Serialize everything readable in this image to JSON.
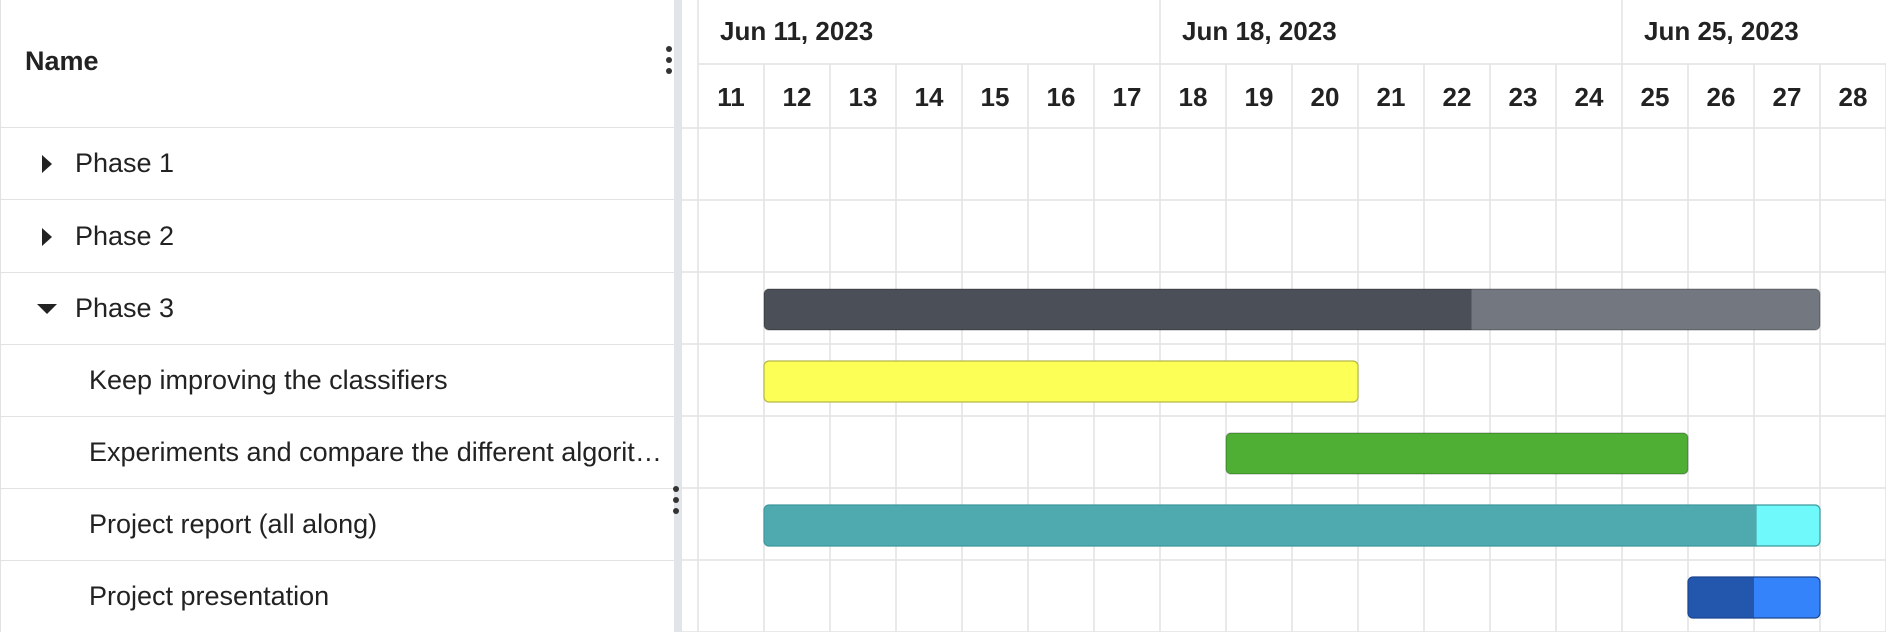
{
  "grid": {
    "header": {
      "name_label": "Name"
    },
    "rows": [
      {
        "label": "Phase 1",
        "type": "phase",
        "expanded": false
      },
      {
        "label": "Phase 2",
        "type": "phase",
        "expanded": false
      },
      {
        "label": "Phase 3",
        "type": "phase",
        "expanded": true
      },
      {
        "label": "Keep improving the classifiers",
        "type": "task"
      },
      {
        "label": "Experiments and compare the different algorithms",
        "type": "task"
      },
      {
        "label": "Project report (all along)",
        "type": "task"
      },
      {
        "label": "Project presentation",
        "type": "task"
      }
    ]
  },
  "timeline": {
    "weeks": [
      "Jun 11, 2023",
      "Jun 18, 2023",
      "Jun 25, 2023"
    ],
    "days": [
      "11",
      "12",
      "13",
      "14",
      "15",
      "16",
      "17",
      "18",
      "19",
      "20",
      "21",
      "22",
      "23",
      "24",
      "25",
      "26",
      "27",
      "28"
    ]
  },
  "chart_data": {
    "type": "gantt",
    "first_day": 11,
    "tasks": [
      {
        "row": "Phase 3",
        "start": 12,
        "end": 28,
        "progress": 0.67,
        "color": "#4b4f57",
        "rest_color": "#737880"
      },
      {
        "row": "Keep improving the classifiers",
        "start": 12,
        "end": 21,
        "progress": 1.0,
        "color": "#fcff55",
        "rest_color": "#fcff55",
        "border": "#b5b84a"
      },
      {
        "row": "Experiments and compare the different algorithms",
        "start": 19,
        "end": 26,
        "progress": 1.0,
        "color": "#4faf35",
        "rest_color": "#4faf35"
      },
      {
        "row": "Project report (all along)",
        "start": 12,
        "end": 28,
        "progress": 0.94,
        "color": "#4eaaaf",
        "rest_color": "#6ff9fa",
        "border": "#3f999e"
      },
      {
        "row": "Project presentation",
        "start": 26,
        "end": 28,
        "progress": 0.5,
        "color": "#2357ad",
        "rest_color": "#3583fa",
        "border": "#1c4690"
      }
    ]
  }
}
